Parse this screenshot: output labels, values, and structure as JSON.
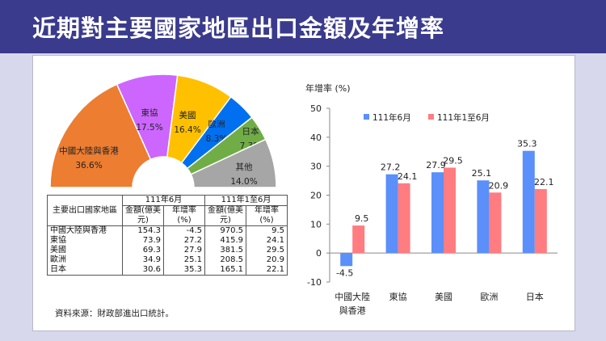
{
  "title": "近期對主要國家地區出口金額及年增率",
  "pie": {
    "slices": [
      {
        "name": "中國大陸與香港",
        "pct": "36.6%",
        "value": 36.6,
        "color": "#ed7d31"
      },
      {
        "name": "東協",
        "pct": "17.5%",
        "value": 17.5,
        "color": "#cc66ff"
      },
      {
        "name": "美國",
        "pct": "16.4%",
        "value": 16.4,
        "color": "#ffc000"
      },
      {
        "name": "歐洲",
        "pct": "8.3%",
        "value": 8.3,
        "color": "#0070f0"
      },
      {
        "name": "日本",
        "pct": "7.3%",
        "value": 7.3,
        "color": "#70ad47"
      },
      {
        "name": "其他",
        "pct": "14.0%",
        "value": 14.0,
        "color": "#a6a6a6"
      }
    ]
  },
  "table": {
    "row_header": "主要出口國家地區",
    "group1": "111年6月",
    "group2": "111年1至6月",
    "col_amount": "金額(億美元)",
    "col_rate": "年增率(%)",
    "rows": [
      {
        "name": "中國大陸與香港",
        "a1": "154.3",
        "r1": "-4.5",
        "a2": "970.5",
        "r2": "9.5"
      },
      {
        "name": "東協",
        "a1": "73.9",
        "r1": "27.2",
        "a2": "415.9",
        "r2": "24.1"
      },
      {
        "name": "美國",
        "a1": "69.3",
        "r1": "27.9",
        "a2": "381.5",
        "r2": "29.5"
      },
      {
        "name": "歐洲",
        "a1": "34.9",
        "r1": "25.1",
        "a2": "208.5",
        "r2": "20.9"
      },
      {
        "name": "日本",
        "a1": "30.6",
        "r1": "35.3",
        "a2": "165.1",
        "r2": "22.1"
      }
    ]
  },
  "source": "資料來源：財政部進出口統計。",
  "chart_data": {
    "type": "bar",
    "ylabel": "年增率 (%)",
    "ylim": [
      -10,
      50
    ],
    "yticks": [
      -10,
      0,
      10,
      20,
      30,
      40,
      50
    ],
    "categories": [
      "中國大陸與香港",
      "東協",
      "美國",
      "歐洲",
      "日本"
    ],
    "series": [
      {
        "name": "111年6月",
        "color": "#5b8ff9",
        "values": [
          -4.5,
          27.2,
          27.9,
          25.1,
          35.3
        ]
      },
      {
        "name": "111年1至6月",
        "color": "#ff7c80",
        "values": [
          9.5,
          24.1,
          29.5,
          20.9,
          22.1
        ]
      }
    ],
    "negative_label_color": "#e00000",
    "legend": "top"
  }
}
